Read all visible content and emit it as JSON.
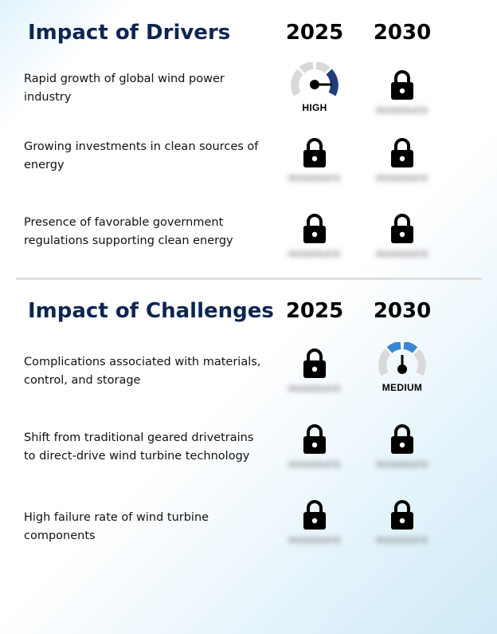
{
  "drivers": {
    "title": "Impact of Drivers",
    "year_a": "2025",
    "year_b": "2030",
    "rows": [
      {
        "label": "Rapid growth of global wind power industry",
        "a": {
          "type": "gauge",
          "level": "HIGH",
          "text": "HIGH",
          "color": "#1f3e7a"
        },
        "b": {
          "type": "lock",
          "icon": "lock-icon",
          "text": "MODERATE"
        }
      },
      {
        "label": "Growing investments in clean sources of energy",
        "a": {
          "type": "lock",
          "icon": "lock-icon",
          "text": "MODERATE"
        },
        "b": {
          "type": "lock",
          "icon": "lock-icon",
          "text": "MODERATE"
        }
      },
      {
        "label": "Presence of favorable government regulations supporting clean energy",
        "a": {
          "type": "lock",
          "icon": "lock-icon",
          "text": "MODERATE"
        },
        "b": {
          "type": "lock",
          "icon": "lock-icon",
          "text": "MODERATE"
        }
      }
    ]
  },
  "challenges": {
    "title": "Impact of Challenges",
    "year_a": "2025",
    "year_b": "2030",
    "rows": [
      {
        "label": "Complications associated with materials, control, and storage",
        "a": {
          "type": "lock",
          "icon": "lock-icon",
          "text": "MODERATE"
        },
        "b": {
          "type": "gauge",
          "level": "MEDIUM",
          "text": "MEDIUM",
          "color": "#3a86d4"
        }
      },
      {
        "label": "Shift from traditional geared drivetrains to direct-drive wind turbine technology",
        "a": {
          "type": "lock",
          "icon": "lock-icon",
          "text": "MODERATE"
        },
        "b": {
          "type": "lock",
          "icon": "lock-icon",
          "text": "MODERATE"
        }
      },
      {
        "label": "High failure rate of wind turbine components",
        "a": {
          "type": "lock",
          "icon": "lock-icon",
          "text": "MODERATE"
        },
        "b": {
          "type": "lock",
          "icon": "lock-icon",
          "text": "MODERATE"
        }
      }
    ]
  }
}
